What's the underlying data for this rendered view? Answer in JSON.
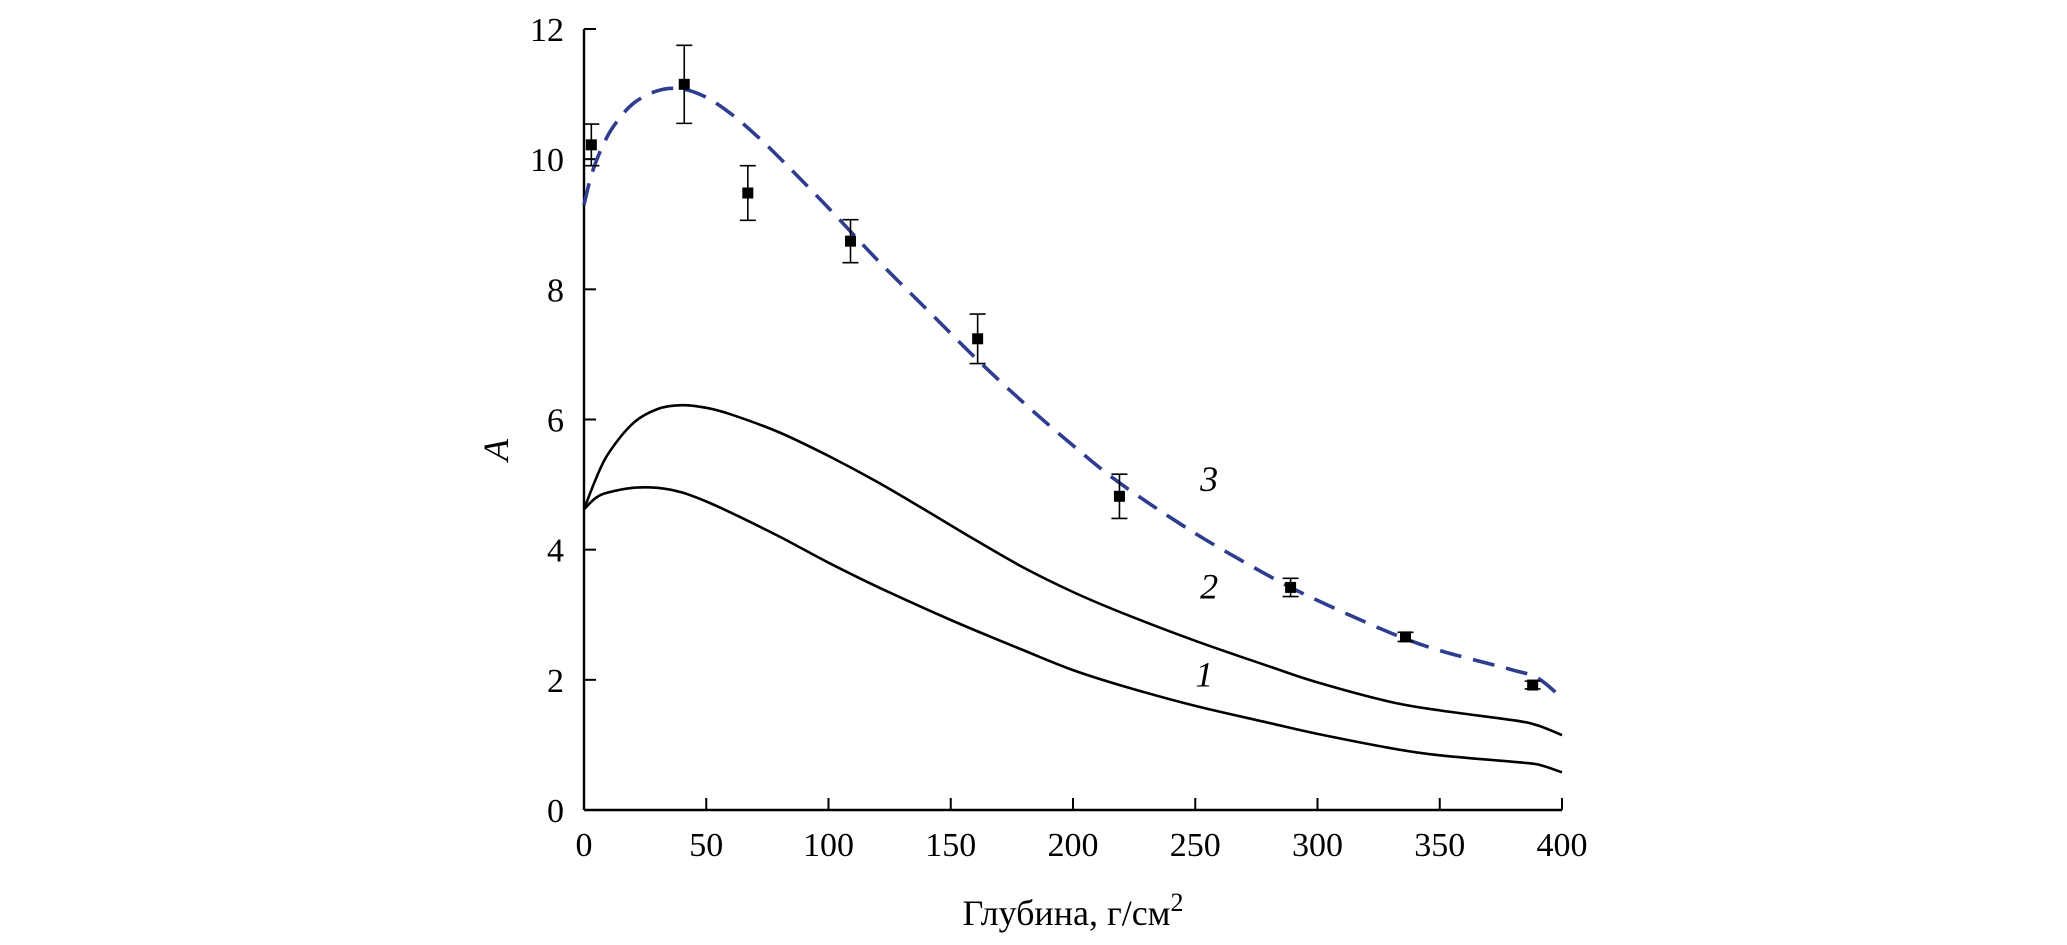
{
  "chart_data": {
    "type": "line",
    "xlabel": "Глубина, г/см",
    "xlabel_superscript": "2",
    "ylabel": "A",
    "xlim": [
      0,
      400
    ],
    "ylim": [
      0,
      12
    ],
    "xticks": [
      0,
      50,
      100,
      150,
      200,
      250,
      300,
      350,
      400
    ],
    "yticks": [
      0,
      2,
      4,
      6,
      8,
      10,
      12
    ],
    "x_tick_labels": [
      "0",
      "50",
      "100",
      "150",
      "200",
      "250",
      "300",
      "350",
      "400"
    ],
    "y_tick_labels": [
      "0",
      "2",
      "4",
      "6",
      "8",
      "10",
      "12"
    ],
    "dash_color": "#2e3d8f",
    "series": [
      {
        "name": "1",
        "style": "solid",
        "label_at": [
          250,
          1.9
        ],
        "points": [
          [
            0,
            4.62
          ],
          [
            5,
            4.8
          ],
          [
            10,
            4.88
          ],
          [
            20,
            4.95
          ],
          [
            30,
            4.95
          ],
          [
            40,
            4.88
          ],
          [
            50,
            4.74
          ],
          [
            60,
            4.57
          ],
          [
            80,
            4.2
          ],
          [
            100,
            3.8
          ],
          [
            120,
            3.43
          ],
          [
            150,
            2.92
          ],
          [
            180,
            2.45
          ],
          [
            200,
            2.15
          ],
          [
            220,
            1.91
          ],
          [
            250,
            1.6
          ],
          [
            280,
            1.34
          ],
          [
            300,
            1.17
          ],
          [
            330,
            0.95
          ],
          [
            350,
            0.84
          ],
          [
            380,
            0.74
          ],
          [
            390,
            0.7
          ],
          [
            400,
            0.58
          ]
        ]
      },
      {
        "name": "2",
        "style": "solid",
        "label_at": [
          252,
          3.25
        ],
        "points": [
          [
            0,
            4.62
          ],
          [
            5,
            5.1
          ],
          [
            10,
            5.48
          ],
          [
            20,
            5.94
          ],
          [
            30,
            6.16
          ],
          [
            40,
            6.22
          ],
          [
            50,
            6.18
          ],
          [
            60,
            6.08
          ],
          [
            80,
            5.8
          ],
          [
            100,
            5.44
          ],
          [
            120,
            5.04
          ],
          [
            140,
            4.6
          ],
          [
            160,
            4.15
          ],
          [
            180,
            3.72
          ],
          [
            200,
            3.35
          ],
          [
            220,
            3.03
          ],
          [
            250,
            2.6
          ],
          [
            280,
            2.21
          ],
          [
            300,
            1.96
          ],
          [
            330,
            1.66
          ],
          [
            350,
            1.53
          ],
          [
            380,
            1.38
          ],
          [
            390,
            1.3
          ],
          [
            400,
            1.15
          ]
        ]
      },
      {
        "name": "3",
        "style": "dashed",
        "label_at": [
          252,
          4.9
        ],
        "points": [
          [
            0,
            9.3
          ],
          [
            3,
            9.75
          ],
          [
            7,
            10.15
          ],
          [
            12,
            10.5
          ],
          [
            20,
            10.85
          ],
          [
            30,
            11.05
          ],
          [
            40,
            11.08
          ],
          [
            50,
            10.95
          ],
          [
            60,
            10.7
          ],
          [
            70,
            10.38
          ],
          [
            80,
            10.02
          ],
          [
            100,
            9.25
          ],
          [
            120,
            8.45
          ],
          [
            140,
            7.7
          ],
          [
            160,
            6.95
          ],
          [
            180,
            6.25
          ],
          [
            200,
            5.6
          ],
          [
            220,
            5.0
          ],
          [
            250,
            4.25
          ],
          [
            280,
            3.6
          ],
          [
            300,
            3.22
          ],
          [
            330,
            2.72
          ],
          [
            350,
            2.45
          ],
          [
            380,
            2.15
          ],
          [
            390,
            2.03
          ],
          [
            400,
            1.72
          ]
        ]
      }
    ],
    "measurements": [
      {
        "x": 3,
        "y": 10.22,
        "err": 0.32
      },
      {
        "x": 41,
        "y": 11.15,
        "err": 0.6
      },
      {
        "x": 67,
        "y": 9.48,
        "err": 0.42
      },
      {
        "x": 109,
        "y": 8.74,
        "err": 0.33
      },
      {
        "x": 161,
        "y": 7.24,
        "err": 0.38
      },
      {
        "x": 219,
        "y": 4.82,
        "err": 0.34
      },
      {
        "x": 289,
        "y": 3.42,
        "err": 0.14
      },
      {
        "x": 336,
        "y": 2.66,
        "err": 0.07
      },
      {
        "x": 388,
        "y": 1.92,
        "err": 0.06
      }
    ]
  }
}
